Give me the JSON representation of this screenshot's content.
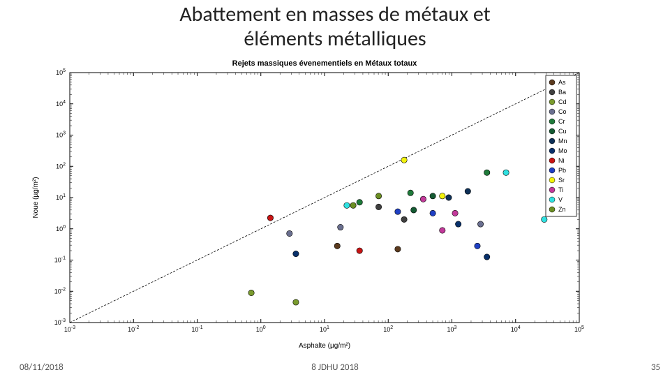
{
  "slide": {
    "title_line1": "Abattement en masses de métaux et",
    "title_line2": "éléments métalliques",
    "date": "08/11/2018",
    "center_footer": "8 JDHU 2018",
    "page_number": "35"
  },
  "chart": {
    "type": "scatter",
    "title": "Rejets massiques évenementiels en Métaux totaux",
    "title_fontsize": 11,
    "title_fontweight": "bold",
    "xlabel": "Asphalte (µg/m²)",
    "ylabel": "Noue (µg/m²)",
    "label_fontsize": 10,
    "background_color": "#ffffff",
    "axis_color": "#000000",
    "tick_color": "#000000",
    "tick_fontsize": 9,
    "xscale": "log",
    "yscale": "log",
    "xlim_exp": [
      -3,
      5
    ],
    "ylim_exp": [
      -3,
      5
    ],
    "x_major_exp": [
      -3,
      -2,
      -1,
      0,
      1,
      2,
      3,
      4,
      5
    ],
    "y_major_exp": [
      -3,
      -2,
      -1,
      0,
      1,
      2,
      3,
      4,
      5
    ],
    "reference_line": {
      "from_exp": [
        -3,
        -3
      ],
      "to_exp": [
        5,
        5
      ],
      "color": "#000000",
      "dash": "3,2",
      "width": 0.8
    },
    "marker_radius": 4.2,
    "marker_edge": "#000000",
    "marker_edge_width": 0.6,
    "legend": {
      "position": "top-right",
      "border_color": "#000000",
      "bg": "#ffffff",
      "fontsize": 9,
      "items": [
        {
          "label": "As",
          "color": "#5b3a1e"
        },
        {
          "label": "Ba",
          "color": "#3f3f3f"
        },
        {
          "label": "Cd",
          "color": "#7a9b2e"
        },
        {
          "label": "Co",
          "color": "#6a6f8f"
        },
        {
          "label": "Cr",
          "color": "#1f7a3a"
        },
        {
          "label": "Cu",
          "color": "#145a32"
        },
        {
          "label": "Mn",
          "color": "#0d3057"
        },
        {
          "label": "Mo",
          "color": "#08306b"
        },
        {
          "label": "Ni",
          "color": "#c81414"
        },
        {
          "label": "Pb",
          "color": "#1f40c4"
        },
        {
          "label": "Sr",
          "color": "#f2f20c"
        },
        {
          "label": "Ti",
          "color": "#c23a9a"
        },
        {
          "label": "V",
          "color": "#2fe0e0"
        },
        {
          "label": "Zn",
          "color": "#6b8e23"
        }
      ]
    },
    "points": [
      {
        "s": "Cd",
        "x_exp": -0.15,
        "y_exp": -2.05
      },
      {
        "s": "Cd",
        "x_exp": 0.55,
        "y_exp": -2.35
      },
      {
        "s": "Co",
        "x_exp": 0.45,
        "y_exp": -0.15
      },
      {
        "s": "Co",
        "x_exp": 1.25,
        "y_exp": 0.05
      },
      {
        "s": "Co",
        "x_exp": 3.45,
        "y_exp": 0.15
      },
      {
        "s": "As",
        "x_exp": 1.2,
        "y_exp": -0.55
      },
      {
        "s": "As",
        "x_exp": 2.15,
        "y_exp": -0.65
      },
      {
        "s": "Ni",
        "x_exp": 0.15,
        "y_exp": 0.35
      },
      {
        "s": "Ni",
        "x_exp": 1.55,
        "y_exp": -0.7
      },
      {
        "s": "Mo",
        "x_exp": 0.55,
        "y_exp": -0.8
      },
      {
        "s": "Mo",
        "x_exp": 3.1,
        "y_exp": 0.15
      },
      {
        "s": "Mo",
        "x_exp": 3.55,
        "y_exp": -0.9
      },
      {
        "s": "Cr",
        "x_exp": 1.55,
        "y_exp": 0.85
      },
      {
        "s": "Cr",
        "x_exp": 2.35,
        "y_exp": 1.15
      },
      {
        "s": "Cr",
        "x_exp": 3.55,
        "y_exp": 1.8
      },
      {
        "s": "Cu",
        "x_exp": 2.4,
        "y_exp": 0.6
      },
      {
        "s": "Cu",
        "x_exp": 2.7,
        "y_exp": 1.05
      },
      {
        "s": "V",
        "x_exp": 1.35,
        "y_exp": 0.75
      },
      {
        "s": "V",
        "x_exp": 3.85,
        "y_exp": 1.8
      },
      {
        "s": "V",
        "x_exp": 4.45,
        "y_exp": 0.3
      },
      {
        "s": "Pb",
        "x_exp": 2.15,
        "y_exp": 0.55
      },
      {
        "s": "Pb",
        "x_exp": 2.7,
        "y_exp": 0.5
      },
      {
        "s": "Pb",
        "x_exp": 3.4,
        "y_exp": -0.55
      },
      {
        "s": "Ti",
        "x_exp": 2.55,
        "y_exp": 0.95
      },
      {
        "s": "Ti",
        "x_exp": 2.85,
        "y_exp": -0.05
      },
      {
        "s": "Ti",
        "x_exp": 3.05,
        "y_exp": 0.5
      },
      {
        "s": "Ba",
        "x_exp": 1.85,
        "y_exp": 0.7
      },
      {
        "s": "Ba",
        "x_exp": 2.25,
        "y_exp": 0.3
      },
      {
        "s": "Zn",
        "x_exp": 1.45,
        "y_exp": 0.75
      },
      {
        "s": "Zn",
        "x_exp": 1.85,
        "y_exp": 1.05
      },
      {
        "s": "Sr",
        "x_exp": 2.25,
        "y_exp": 2.2
      },
      {
        "s": "Sr",
        "x_exp": 2.85,
        "y_exp": 1.05
      },
      {
        "s": "Mn",
        "x_exp": 2.95,
        "y_exp": 1.0
      },
      {
        "s": "Mn",
        "x_exp": 3.25,
        "y_exp": 1.2
      }
    ]
  }
}
